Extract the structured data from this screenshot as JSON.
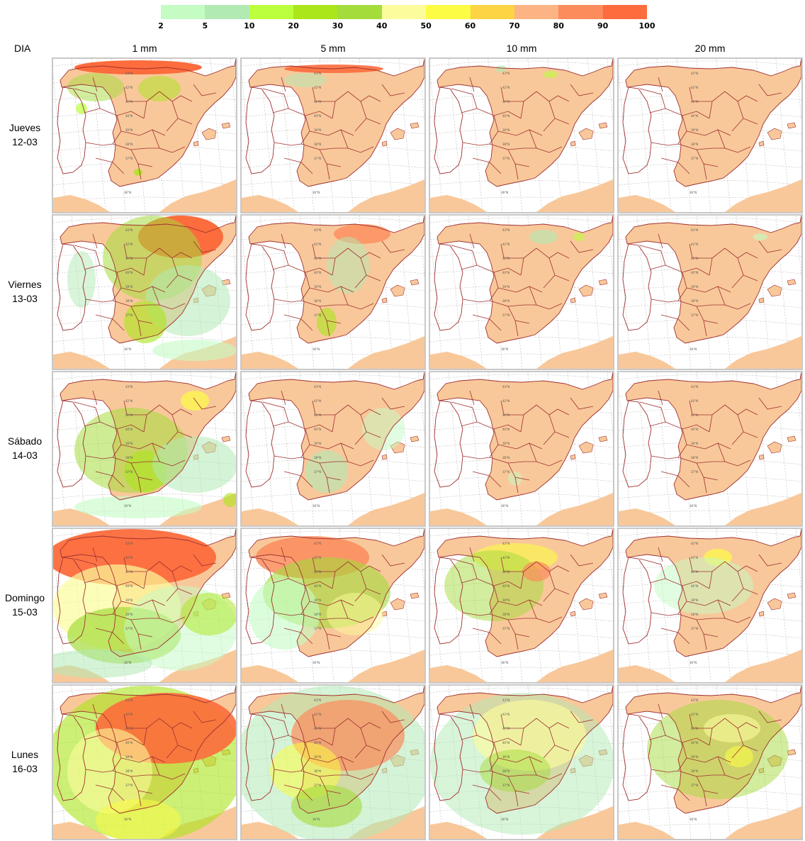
{
  "legend": {
    "colors": [
      "#c4fcc4",
      "#b2eab4",
      "#bcff3c",
      "#aae61a",
      "#a4dc3c",
      "#fcfc9c",
      "#fcfc44",
      "#fcd444",
      "#fcb484",
      "#fc8c5c",
      "#fc6c3c"
    ],
    "ticks": [
      "2",
      "5",
      "10",
      "20",
      "30",
      "40",
      "50",
      "60",
      "70",
      "80",
      "90",
      "100"
    ]
  },
  "header": {
    "corner_label": "DIA",
    "columns": [
      "1 mm",
      "5 mm",
      "10 mm",
      "20 mm"
    ]
  },
  "rows": [
    {
      "day": "Jueves",
      "date": "12-03"
    },
    {
      "day": "Viernes",
      "date": "13-03"
    },
    {
      "day": "Sábado",
      "date": "14-03"
    },
    {
      "day": "Domingo",
      "date": "15-03"
    },
    {
      "day": "Lunes",
      "date": "16-03"
    }
  ],
  "map_colors": {
    "sea": "#ffffff",
    "land": "#f8c89a",
    "borders": "#a03030",
    "graticule": "#bbbbbb"
  },
  "graticule_labels": [
    "43°N",
    "42°N",
    "41°N",
    "40°N",
    "39°N",
    "38°N",
    "37°N",
    "36°N"
  ]
}
